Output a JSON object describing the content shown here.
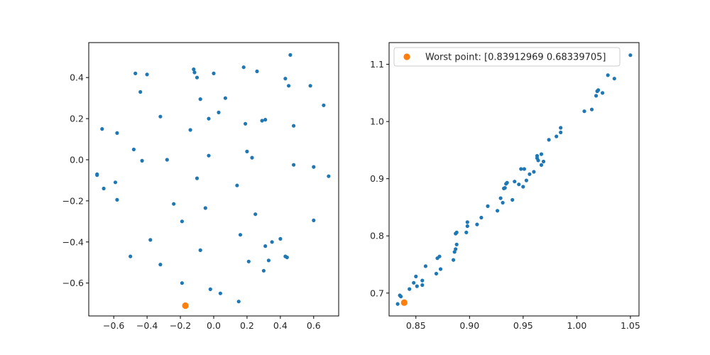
{
  "colors": {
    "points": "#1f77b4",
    "worst": "#ff7f0e"
  },
  "chart_data": [
    {
      "type": "scatter",
      "title": "",
      "xlabel": "",
      "ylabel": "",
      "xlim": [
        -0.75,
        0.75
      ],
      "ylim": [
        -0.76,
        0.57
      ],
      "xticks": [
        -0.6,
        -0.4,
        -0.2,
        0.0,
        0.2,
        0.4,
        0.6
      ],
      "xtick_labels": [
        "−0.6",
        "−0.4",
        "−0.2",
        "0.0",
        "0.2",
        "0.4",
        "0.6"
      ],
      "yticks": [
        -0.6,
        -0.4,
        -0.2,
        0.0,
        0.2,
        0.4
      ],
      "ytick_labels": [
        "−0.6",
        "−0.4",
        "−0.2",
        "0.0",
        "0.2",
        "0.4"
      ],
      "grid": false,
      "series": [
        {
          "color": "#1f77b4",
          "points": [
            [
              0.46,
              0.51
            ],
            [
              -0.47,
              0.42
            ],
            [
              -0.4,
              0.415
            ],
            [
              -0.12,
              0.44
            ],
            [
              -0.115,
              0.425
            ],
            [
              -0.1,
              0.4
            ],
            [
              0.0,
              0.42
            ],
            [
              0.18,
              0.45
            ],
            [
              0.26,
              0.43
            ],
            [
              0.43,
              0.395
            ],
            [
              0.45,
              0.36
            ],
            [
              0.58,
              0.36
            ],
            [
              -0.44,
              0.33
            ],
            [
              -0.08,
              0.295
            ],
            [
              0.07,
              0.3
            ],
            [
              0.66,
              0.265
            ],
            [
              -0.32,
              0.21
            ],
            [
              0.03,
              0.23
            ],
            [
              -0.03,
              0.2
            ],
            [
              0.19,
              0.175
            ],
            [
              0.29,
              0.19
            ],
            [
              0.31,
              0.195
            ],
            [
              0.48,
              0.165
            ],
            [
              -0.67,
              0.15
            ],
            [
              -0.58,
              0.13
            ],
            [
              -0.14,
              0.145
            ],
            [
              -0.48,
              0.05
            ],
            [
              0.2,
              0.04
            ],
            [
              -0.03,
              0.02
            ],
            [
              0.23,
              0.01
            ],
            [
              -0.43,
              -0.005
            ],
            [
              -0.28,
              0.0
            ],
            [
              0.48,
              -0.025
            ],
            [
              0.6,
              -0.035
            ],
            [
              -0.7,
              -0.07
            ],
            [
              -0.7,
              -0.075
            ],
            [
              -0.1,
              -0.09
            ],
            [
              0.69,
              -0.08
            ],
            [
              -0.59,
              -0.11
            ],
            [
              0.14,
              -0.125
            ],
            [
              -0.66,
              -0.14
            ],
            [
              -0.58,
              -0.195
            ],
            [
              -0.24,
              -0.215
            ],
            [
              -0.05,
              -0.235
            ],
            [
              0.25,
              -0.265
            ],
            [
              -0.19,
              -0.3
            ],
            [
              0.6,
              -0.295
            ],
            [
              0.16,
              -0.365
            ],
            [
              -0.38,
              -0.39
            ],
            [
              0.35,
              -0.4
            ],
            [
              0.4,
              -0.385
            ],
            [
              0.31,
              -0.42
            ],
            [
              -0.08,
              -0.44
            ],
            [
              -0.5,
              -0.47
            ],
            [
              0.43,
              -0.47
            ],
            [
              0.44,
              -0.475
            ],
            [
              0.21,
              -0.495
            ],
            [
              0.33,
              -0.49
            ],
            [
              -0.32,
              -0.51
            ],
            [
              0.3,
              -0.54
            ],
            [
              -0.19,
              -0.6
            ],
            [
              -0.02,
              -0.63
            ],
            [
              0.04,
              -0.65
            ],
            [
              0.15,
              -0.69
            ]
          ]
        },
        {
          "color": "#ff7f0e",
          "points": [
            [
              -0.17,
              -0.71
            ]
          ]
        }
      ]
    },
    {
      "type": "scatter",
      "title": "",
      "xlabel": "",
      "ylabel": "",
      "xlim": [
        0.825,
        1.058
      ],
      "ylim": [
        0.66,
        1.138
      ],
      "xticks": [
        0.85,
        0.9,
        0.95,
        1.0,
        1.05
      ],
      "xtick_labels": [
        "0.85",
        "0.90",
        "0.95",
        "1.00",
        "1.05"
      ],
      "yticks": [
        0.7,
        0.8,
        0.9,
        1.0,
        1.1
      ],
      "ytick_labels": [
        "0.7",
        "0.8",
        "0.9",
        "1.0",
        "1.1"
      ],
      "grid": false,
      "legend": {
        "placement": "upper-left",
        "entries": [
          {
            "label": "Worst point: [0.83912969 0.68339705]",
            "color": "#ff7f0e"
          }
        ]
      },
      "series": [
        {
          "color": "#1f77b4",
          "points": [
            [
              0.833,
              0.681
            ],
            [
              0.835,
              0.696
            ],
            [
              0.836,
              0.694
            ],
            [
              0.844,
              0.707
            ],
            [
              0.848,
              0.718
            ],
            [
              0.85,
              0.729
            ],
            [
              0.851,
              0.712
            ],
            [
              0.856,
              0.722
            ],
            [
              0.856,
              0.714
            ],
            [
              0.859,
              0.747
            ],
            [
              0.869,
              0.734
            ],
            [
              0.87,
              0.761
            ],
            [
              0.872,
              0.764
            ],
            [
              0.873,
              0.742
            ],
            [
              0.885,
              0.758
            ],
            [
              0.886,
              0.772
            ],
            [
              0.887,
              0.777
            ],
            [
              0.888,
              0.785
            ],
            [
              0.887,
              0.804
            ],
            [
              0.888,
              0.806
            ],
            [
              0.897,
              0.806
            ],
            [
              0.898,
              0.817
            ],
            [
              0.898,
              0.824
            ],
            [
              0.907,
              0.82
            ],
            [
              0.911,
              0.832
            ],
            [
              0.917,
              0.852
            ],
            [
              0.926,
              0.844
            ],
            [
              0.929,
              0.866
            ],
            [
              0.931,
              0.858
            ],
            [
              0.932,
              0.883
            ],
            [
              0.933,
              0.884
            ],
            [
              0.934,
              0.891
            ],
            [
              0.935,
              0.893
            ],
            [
              0.94,
              0.863
            ],
            [
              0.942,
              0.895
            ],
            [
              0.946,
              0.89
            ],
            [
              0.948,
              0.917
            ],
            [
              0.951,
              0.917
            ],
            [
              0.95,
              0.886
            ],
            [
              0.953,
              0.897
            ],
            [
              0.956,
              0.908
            ],
            [
              0.96,
              0.912
            ],
            [
              0.963,
              0.94
            ],
            [
              0.963,
              0.936
            ],
            [
              0.964,
              0.932
            ],
            [
              0.967,
              0.943
            ],
            [
              0.967,
              0.924
            ],
            [
              0.969,
              0.93
            ],
            [
              0.974,
              0.968
            ],
            [
              0.981,
              0.974
            ],
            [
              0.985,
              0.989
            ],
            [
              0.985,
              0.981
            ],
            [
              1.007,
              1.018
            ],
            [
              1.014,
              1.021
            ],
            [
              1.018,
              1.045
            ],
            [
              1.019,
              1.053
            ],
            [
              1.02,
              1.055
            ],
            [
              1.024,
              1.05
            ],
            [
              1.029,
              1.081
            ],
            [
              1.035,
              1.075
            ],
            [
              1.05,
              1.116
            ]
          ]
        },
        {
          "color": "#ff7f0e",
          "points": [
            [
              0.8391,
              0.6834
            ]
          ]
        }
      ]
    }
  ]
}
